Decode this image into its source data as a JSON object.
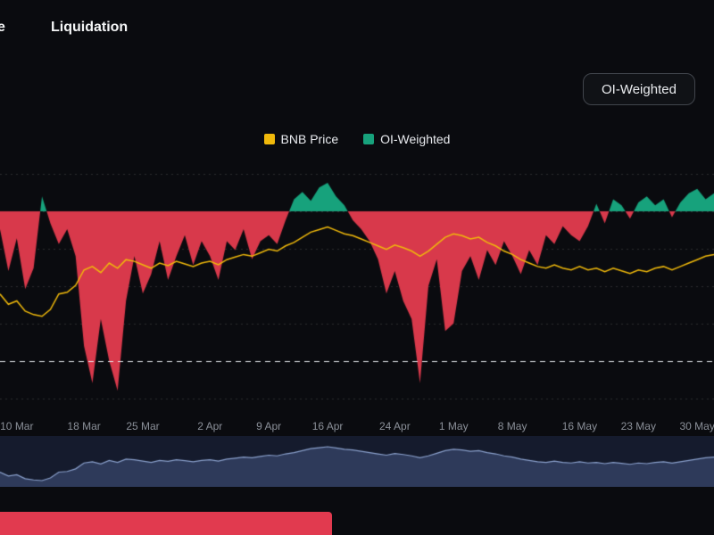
{
  "header": {
    "tab_partial": "e",
    "tab_liquidation": "Liquidation"
  },
  "controls": {
    "oi_weighted_button": "OI-Weighted"
  },
  "legend": [
    {
      "name": "bnb-price",
      "label": "BNB Price",
      "color": "#f0b90b"
    },
    {
      "name": "oi-weighted",
      "label": "OI-Weighted",
      "color": "#17a27c"
    }
  ],
  "colors": {
    "background": "#0a0b0f",
    "positive_area": "#17a27c",
    "negative_area": "#d8394b",
    "price_line": "#f0b90b",
    "gridline": "rgba(255,255,255,0.14)",
    "dashed_line": "#e8ecf0",
    "axis_text": "#8b9099",
    "nav_bg": "#151b2d",
    "nav_fill": "#2e3a5a",
    "nav_line": "#8aa0cc",
    "bottom_bar": "#e13a4f"
  },
  "chart_data": {
    "type": "area",
    "title": "",
    "xlabel": "",
    "ylabel": "",
    "grid": true,
    "legend_position": "top-center",
    "x_ticks": [
      {
        "label": "10 Mar",
        "day": 2
      },
      {
        "label": "18 Mar",
        "day": 10
      },
      {
        "label": "25 Mar",
        "day": 17
      },
      {
        "label": "2 Apr",
        "day": 25
      },
      {
        "label": "9 Apr",
        "day": 32
      },
      {
        "label": "16 Apr",
        "day": 39
      },
      {
        "label": "24 Apr",
        "day": 47
      },
      {
        "label": "1 May",
        "day": 54
      },
      {
        "label": "8 May",
        "day": 61
      },
      {
        "label": "16 May",
        "day": 69
      },
      {
        "label": "23 May",
        "day": 76
      },
      {
        "label": "30 May",
        "day": 83
      }
    ],
    "days_total": 86,
    "gridline_values": [
      0.025,
      0,
      -0.025,
      -0.05,
      -0.075,
      -0.125
    ],
    "dashed_value": -0.1,
    "series": [
      {
        "name": "OI-Weighted",
        "type": "area",
        "ylim": [
          -0.13,
          0.028
        ],
        "values": [
          -0.012,
          -0.04,
          -0.018,
          -0.052,
          -0.038,
          0.01,
          -0.008,
          -0.022,
          -0.012,
          -0.03,
          -0.09,
          -0.115,
          -0.072,
          -0.1,
          -0.12,
          -0.06,
          -0.03,
          -0.055,
          -0.042,
          -0.02,
          -0.046,
          -0.03,
          -0.016,
          -0.036,
          -0.02,
          -0.03,
          -0.046,
          -0.02,
          -0.026,
          -0.012,
          -0.032,
          -0.02,
          -0.016,
          -0.022,
          -0.006,
          0.008,
          0.013,
          0.007,
          0.016,
          0.019,
          0.01,
          0.004,
          -0.006,
          -0.012,
          -0.02,
          -0.032,
          -0.055,
          -0.04,
          -0.06,
          -0.072,
          -0.115,
          -0.05,
          -0.032,
          -0.08,
          -0.075,
          -0.04,
          -0.03,
          -0.046,
          -0.026,
          -0.036,
          -0.02,
          -0.03,
          -0.042,
          -0.026,
          -0.036,
          -0.016,
          -0.022,
          -0.01,
          -0.016,
          -0.02,
          -0.01,
          0.005,
          -0.008,
          0.008,
          0.004,
          -0.005,
          0.006,
          0.01,
          0.004,
          0.008,
          -0.004,
          0.006,
          0.012,
          0.015,
          0.008,
          0.012
        ]
      },
      {
        "name": "BNB Price",
        "type": "line",
        "ylim": [
          430,
          705
        ],
        "values": [
          560,
          548,
          552,
          540,
          536,
          534,
          542,
          560,
          562,
          570,
          588,
          592,
          585,
          596,
          590,
          600,
          598,
          594,
          590,
          596,
          593,
          598,
          595,
          592,
          596,
          598,
          594,
          600,
          603,
          606,
          604,
          608,
          612,
          610,
          616,
          620,
          626,
          632,
          635,
          638,
          634,
          630,
          628,
          624,
          620,
          616,
          612,
          617,
          614,
          610,
          604,
          610,
          618,
          626,
          630,
          628,
          624,
          626,
          620,
          616,
          610,
          606,
          600,
          596,
          592,
          590,
          594,
          590,
          588,
          592,
          588,
          590,
          586,
          590,
          587,
          584,
          588,
          586,
          590,
          592,
          588,
          592,
          596,
          600,
          604,
          606
        ]
      }
    ]
  }
}
